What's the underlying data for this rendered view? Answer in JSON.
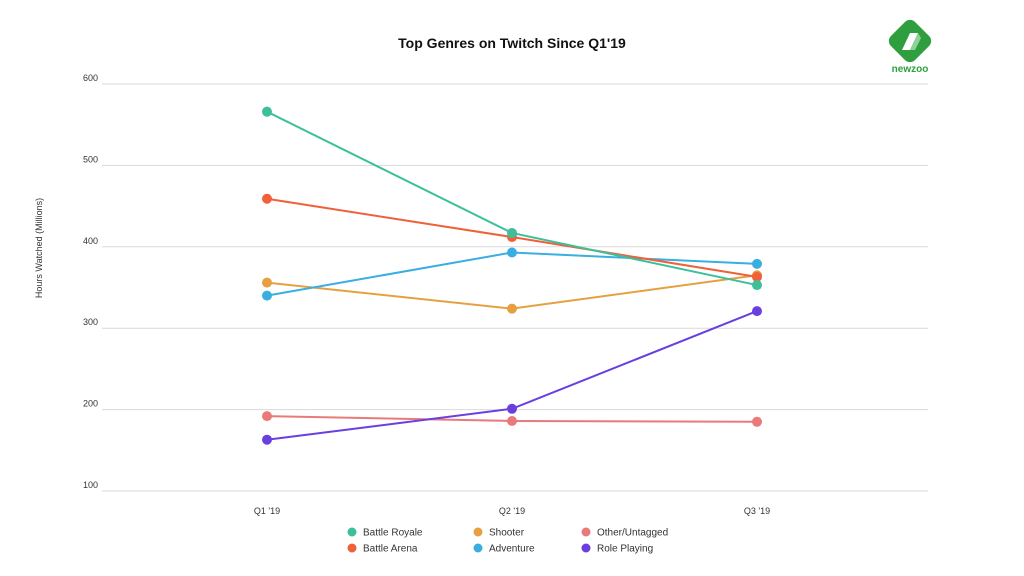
{
  "brand": {
    "logo_text": "newzoo",
    "logo_icon": "newzoo-logo-icon",
    "logo_color": "#2e9e3f"
  },
  "chart_data": {
    "type": "line",
    "title": "Top Genres on Twitch Since Q1'19",
    "xlabel": "",
    "ylabel": "Hours Watched (Millions)",
    "categories": [
      "Q1 '19",
      "Q2 '19",
      "Q3 '19"
    ],
    "ylim": [
      100,
      600
    ],
    "yticks": [
      "100",
      "200",
      "300",
      "400",
      "500",
      "600"
    ],
    "grid": true,
    "legend_position": "bottom",
    "series": [
      {
        "name": "Battle Royale",
        "color": "#3cbf9a",
        "values": [
          566,
          417,
          353
        ]
      },
      {
        "name": "Shooter",
        "color": "#e6a040",
        "values": [
          356,
          324,
          365
        ]
      },
      {
        "name": "Other/Untagged",
        "color": "#e87a7a",
        "values": [
          192,
          186,
          185
        ]
      },
      {
        "name": "Battle Arena",
        "color": "#f0603a",
        "values": [
          459,
          412,
          363
        ]
      },
      {
        "name": "Adventure",
        "color": "#3aaee0",
        "values": [
          340,
          393,
          379
        ]
      },
      {
        "name": "Role Playing",
        "color": "#6a3fe0",
        "values": [
          163,
          201,
          321
        ]
      }
    ]
  }
}
